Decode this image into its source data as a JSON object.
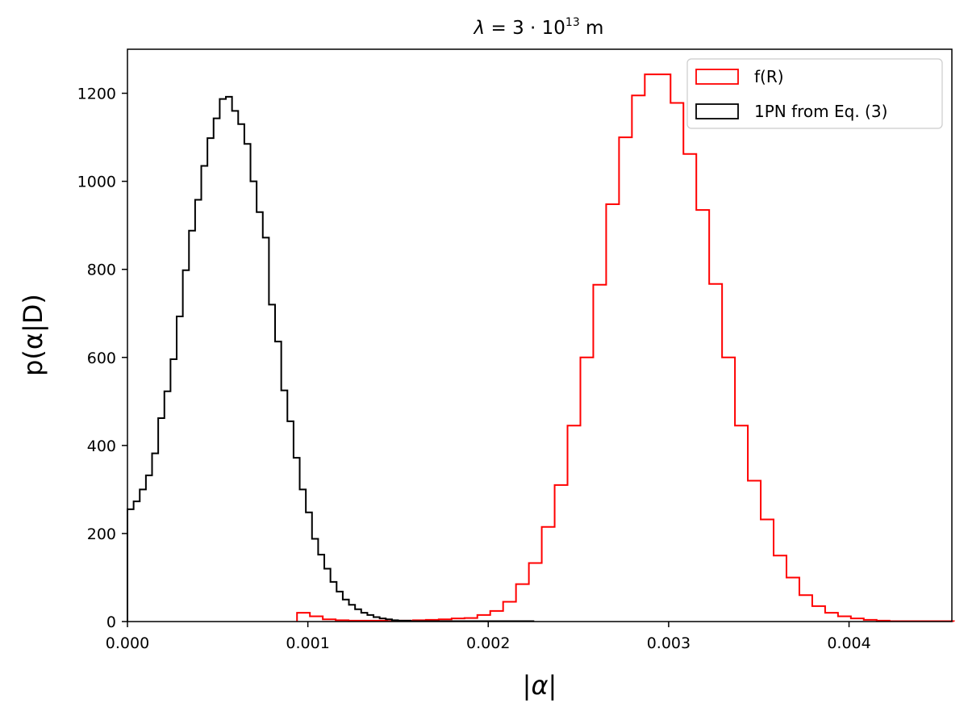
{
  "chart_data": {
    "type": "step-histogram",
    "title": {
      "symbol": "λ",
      "eq": " = 3 · 10",
      "exp": "13",
      "unit": " m"
    },
    "xlabel": "|α|",
    "ylabel": "p(α|D)",
    "xlim": [
      0.0,
      0.00457
    ],
    "ylim": [
      0,
      1300
    ],
    "xticks": [
      0.0,
      0.001,
      0.002,
      0.003,
      0.004
    ],
    "xtick_labels": [
      "0.000",
      "0.001",
      "0.002",
      "0.003",
      "0.004"
    ],
    "yticks": [
      0,
      200,
      400,
      600,
      800,
      1000,
      1200
    ],
    "ytick_labels": [
      "0",
      "200",
      "400",
      "600",
      "800",
      "1000",
      "1200"
    ],
    "grid": false,
    "legend_position": "top-right",
    "series": [
      {
        "name": "f(R)",
        "color": "#ff0000",
        "bin_start": 0.00094,
        "bin_width": 7.14e-05,
        "values": [
          20,
          12,
          5,
          3,
          2,
          2,
          2,
          1,
          2,
          3,
          4,
          5,
          7,
          8,
          15,
          24,
          45,
          85,
          133,
          215,
          310,
          445,
          600,
          765,
          948,
          1100,
          1195,
          1243,
          1243,
          1178,
          1062,
          935,
          767,
          600,
          445,
          320,
          232,
          150,
          100,
          60,
          35,
          20,
          12,
          7,
          4,
          2,
          1,
          1,
          1,
          1,
          1
        ]
      },
      {
        "name": "1PN from Eq. (3)",
        "color": "#000000",
        "bin_start": 0.0,
        "bin_width": 3.41e-05,
        "values": [
          255,
          273,
          300,
          332,
          382,
          462,
          523,
          596,
          693,
          798,
          888,
          958,
          1035,
          1098,
          1143,
          1187,
          1192,
          1160,
          1130,
          1085,
          1000,
          930,
          872,
          720,
          636,
          525,
          455,
          372,
          300,
          248,
          188,
          152,
          120,
          90,
          68,
          50,
          38,
          28,
          20,
          15,
          10,
          7,
          5,
          3,
          2,
          2,
          1,
          1,
          1,
          1,
          1,
          1,
          1,
          1,
          1,
          1,
          1,
          1,
          1,
          1,
          1,
          1,
          1,
          1,
          1,
          1
        ]
      }
    ]
  }
}
